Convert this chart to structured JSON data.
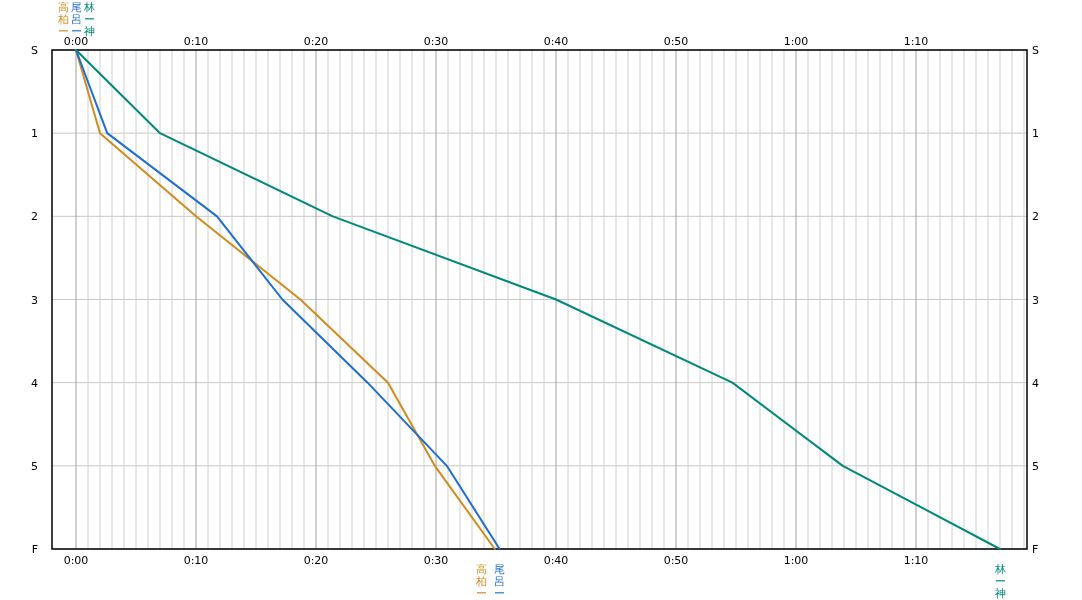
{
  "chart_data": {
    "type": "line",
    "grid": true,
    "line_style": "solid",
    "xlim": [
      -2,
      79.25
    ],
    "ylim": [
      6,
      0
    ],
    "y2lim": [
      6,
      0
    ],
    "x2lim": [
      -2,
      79.25
    ],
    "xticks": [
      {
        "value": 0,
        "label": "0:00"
      },
      {
        "value": 1,
        "label": null
      },
      {
        "value": 2,
        "label": null
      },
      {
        "value": 3,
        "label": null
      },
      {
        "value": 4,
        "label": null
      },
      {
        "value": 5,
        "label": null
      },
      {
        "value": 6,
        "label": null
      },
      {
        "value": 7,
        "label": null
      },
      {
        "value": 8,
        "label": null
      },
      {
        "value": 9,
        "label": null
      },
      {
        "value": 10,
        "label": "0:10"
      },
      {
        "value": 11,
        "label": null
      },
      {
        "value": 12,
        "label": null
      },
      {
        "value": 13,
        "label": null
      },
      {
        "value": 14,
        "label": null
      },
      {
        "value": 15,
        "label": null
      },
      {
        "value": 16,
        "label": null
      },
      {
        "value": 17,
        "label": null
      },
      {
        "value": 18,
        "label": null
      },
      {
        "value": 19,
        "label": null
      },
      {
        "value": 20,
        "label": "0:20"
      },
      {
        "value": 21,
        "label": null
      },
      {
        "value": 22,
        "label": null
      },
      {
        "value": 23,
        "label": null
      },
      {
        "value": 24,
        "label": null
      },
      {
        "value": 25,
        "label": null
      },
      {
        "value": 26,
        "label": null
      },
      {
        "value": 27,
        "label": null
      },
      {
        "value": 28,
        "label": null
      },
      {
        "value": 29,
        "label": null
      },
      {
        "value": 30,
        "label": "0:30"
      },
      {
        "value": 31,
        "label": null
      },
      {
        "value": 32,
        "label": null
      },
      {
        "value": 33,
        "label": null
      },
      {
        "value": 34,
        "label": null
      },
      {
        "value": 35,
        "label": null
      },
      {
        "value": 36,
        "label": null
      },
      {
        "value": 37,
        "label": null
      },
      {
        "value": 38,
        "label": null
      },
      {
        "value": 39,
        "label": null
      },
      {
        "value": 40,
        "label": "0:40"
      },
      {
        "value": 41,
        "label": null
      },
      {
        "value": 42,
        "label": null
      },
      {
        "value": 43,
        "label": null
      },
      {
        "value": 44,
        "label": null
      },
      {
        "value": 45,
        "label": null
      },
      {
        "value": 46,
        "label": null
      },
      {
        "value": 47,
        "label": null
      },
      {
        "value": 48,
        "label": null
      },
      {
        "value": 49,
        "label": null
      },
      {
        "value": 50,
        "label": "0:50"
      },
      {
        "value": 51,
        "label": null
      },
      {
        "value": 52,
        "label": null
      },
      {
        "value": 53,
        "label": null
      },
      {
        "value": 54,
        "label": null
      },
      {
        "value": 55,
        "label": null
      },
      {
        "value": 56,
        "label": null
      },
      {
        "value": 57,
        "label": null
      },
      {
        "value": 58,
        "label": null
      },
      {
        "value": 59,
        "label": null
      },
      {
        "value": 60,
        "label": "1:00"
      },
      {
        "value": 61,
        "label": null
      },
      {
        "value": 62,
        "label": null
      },
      {
        "value": 63,
        "label": null
      },
      {
        "value": 64,
        "label": null
      },
      {
        "value": 65,
        "label": null
      },
      {
        "value": 66,
        "label": null
      },
      {
        "value": 67,
        "label": null
      },
      {
        "value": 68,
        "label": null
      },
      {
        "value": 69,
        "label": null
      },
      {
        "value": 70,
        "label": "1:10"
      },
      {
        "value": 71,
        "label": null
      },
      {
        "value": 72,
        "label": null
      },
      {
        "value": 73,
        "label": null
      },
      {
        "value": 74,
        "label": null
      },
      {
        "value": 75,
        "label": null
      },
      {
        "value": 76,
        "label": null
      },
      {
        "value": 77,
        "label": null
      },
      {
        "value": 78,
        "label": null
      },
      {
        "value": 79,
        "label": null
      }
    ],
    "x2ticks": [
      {
        "value": 0,
        "label": "0:00"
      },
      {
        "value": 10,
        "label": "0:10"
      },
      {
        "value": 20,
        "label": "0:20"
      },
      {
        "value": 30,
        "label": "0:30"
      },
      {
        "value": 40,
        "label": "0:40"
      },
      {
        "value": 50,
        "label": "0:50"
      },
      {
        "value": 60,
        "label": "1:00"
      },
      {
        "value": 70,
        "label": "1:10"
      }
    ],
    "yticks": [
      {
        "value": 0,
        "label": "S"
      },
      1,
      2,
      3,
      4,
      5,
      {
        "value": 6,
        "label": "F"
      }
    ],
    "y2ticks": [
      {
        "value": 0,
        "label": "S"
      },
      1,
      2,
      3,
      4,
      5,
      {
        "value": 6,
        "label": "F"
      }
    ],
    "series": [
      {
        "name": "高柏ー",
        "color": "#d08c1e",
        "x": [
          0,
          2.0,
          10.0,
          18.7,
          26.0,
          29.9,
          34.9
        ],
        "values": [
          0,
          1,
          2,
          3,
          4,
          5,
          6
        ]
      },
      {
        "name": "尾呂ー",
        "color": "#1e6ed2",
        "x": [
          0,
          2.6,
          11.75,
          17.2,
          24.3,
          30.9,
          35.3
        ],
        "values": [
          0,
          1,
          2,
          3,
          4,
          5,
          6
        ]
      },
      {
        "name": "林ー神",
        "color": "#00897b",
        "x": [
          0,
          7.0,
          21.4,
          40.0,
          54.7,
          63.9,
          77.0
        ],
        "values": [
          0,
          1,
          2,
          3,
          4,
          5,
          6
        ]
      }
    ]
  }
}
